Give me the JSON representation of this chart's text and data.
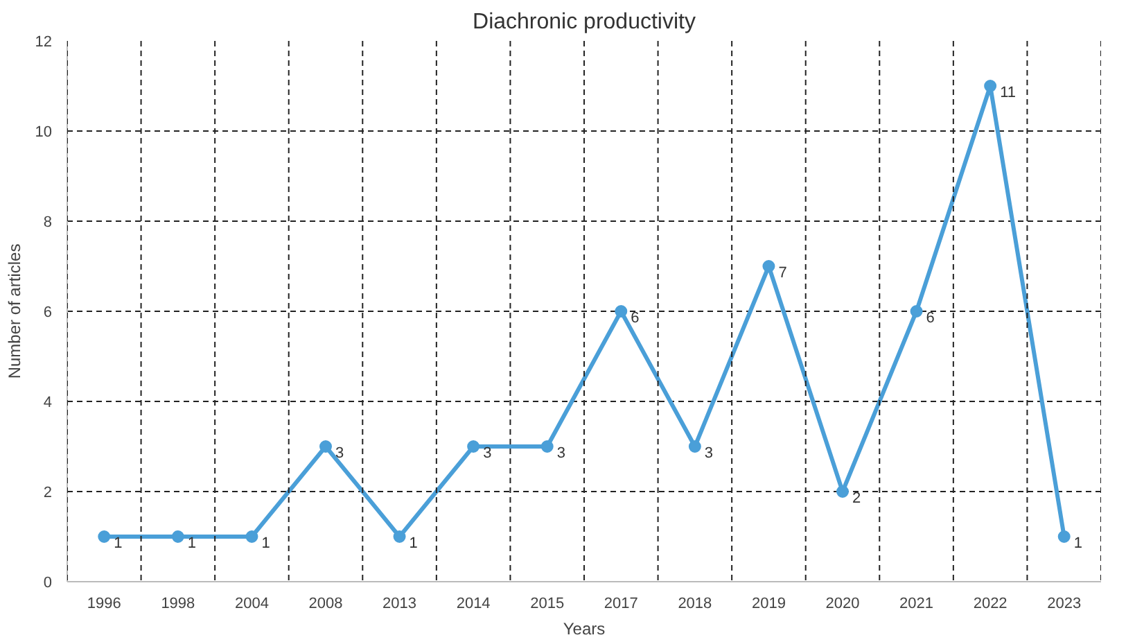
{
  "chart_data": {
    "type": "line",
    "title": "Diachronic productivity",
    "xlabel": "Years",
    "ylabel": "Number of articles",
    "categories": [
      "1996",
      "1998",
      "2004",
      "2008",
      "2013",
      "2014",
      "2015",
      "2017",
      "2018",
      "2019",
      "2020",
      "2021",
      "2022",
      "2023"
    ],
    "series": [
      {
        "color": "#4a9fd8",
        "values": [
          1,
          1,
          1,
          3,
          1,
          3,
          3,
          6,
          3,
          7,
          2,
          6,
          11,
          1
        ]
      }
    ],
    "ylim": [
      0,
      12
    ],
    "yticks": [
      0,
      2,
      4,
      6,
      8,
      10,
      12
    ],
    "grid": true,
    "data_labels": true,
    "marker": "circle",
    "line_style": "solid"
  }
}
